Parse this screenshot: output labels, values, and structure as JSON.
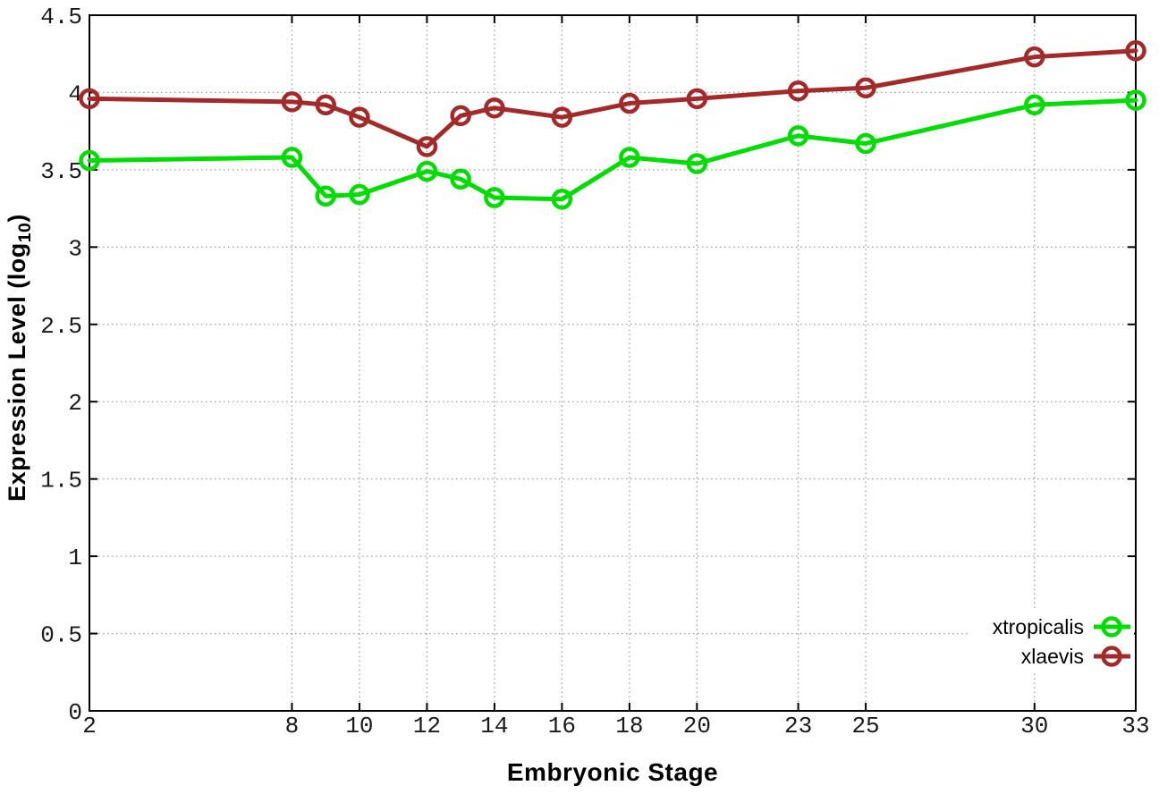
{
  "chart_data": {
    "type": "line",
    "title": "",
    "xlabel": "Embryonic Stage",
    "ylabel": "Expression Level (log10)",
    "ylabel_parts": {
      "main": "Expression Level (log",
      "sub": "10",
      "suffix": ")"
    },
    "x": [
      2,
      8,
      9,
      10,
      12,
      13,
      14,
      16,
      18,
      20,
      23,
      25,
      30,
      33
    ],
    "xlim": [
      2,
      33
    ],
    "ylim": [
      0,
      4.5
    ],
    "xticks": [
      2,
      8,
      10,
      12,
      14,
      16,
      18,
      20,
      23,
      25,
      30,
      33
    ],
    "yticks": [
      0,
      0.5,
      1,
      1.5,
      2,
      2.5,
      3,
      3.5,
      4,
      4.5
    ],
    "grid": true,
    "legend_position": "bottom-right",
    "series": [
      {
        "name": "xtropicalis",
        "color": "#00dd00",
        "values": [
          3.56,
          3.58,
          3.33,
          3.34,
          3.49,
          3.44,
          3.32,
          3.31,
          3.58,
          3.54,
          3.72,
          3.67,
          3.92,
          3.95
        ]
      },
      {
        "name": "xlaevis",
        "color": "#a42a2a",
        "values": [
          3.96,
          3.94,
          3.92,
          3.84,
          3.65,
          3.85,
          3.9,
          3.84,
          3.93,
          3.96,
          4.01,
          4.03,
          4.23,
          4.27
        ]
      }
    ],
    "style": {
      "grid_color": "#a0a0a0",
      "border_color": "#000000",
      "tick_label_color": "#1a1a1a",
      "marker": "open-circle",
      "line_width": 5,
      "marker_radius": 9.5,
      "marker_stroke": 4.5
    }
  }
}
